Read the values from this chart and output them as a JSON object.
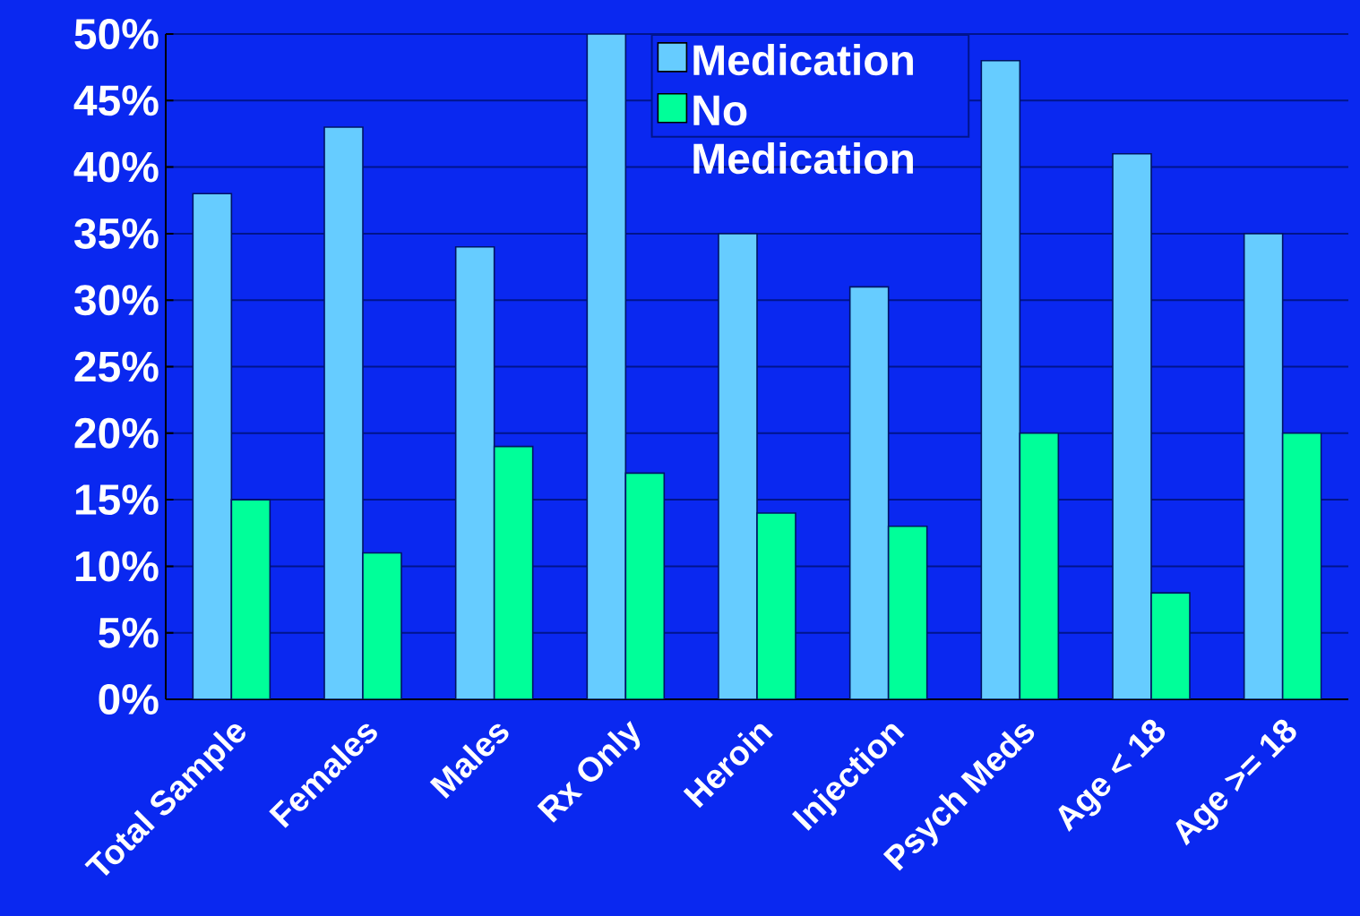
{
  "chart_data": {
    "type": "bar",
    "categories": [
      "Total Sample",
      "Females",
      "Males",
      "Rx Only",
      "Heroin",
      "Injection",
      "Psych Meds",
      "Age < 18",
      "Age >= 18"
    ],
    "series": [
      {
        "name": "Medication",
        "color": "#66ccff",
        "values": [
          38,
          43,
          34,
          50,
          35,
          31,
          48,
          41,
          35
        ]
      },
      {
        "name": "No Medication",
        "color": "#00ff99",
        "values": [
          15,
          11,
          19,
          17,
          14,
          13,
          20,
          8,
          20
        ]
      }
    ],
    "ylim": [
      0,
      50
    ],
    "yticks": [
      {
        "value": 0,
        "label": "0%"
      },
      {
        "value": 5,
        "label": "5%"
      },
      {
        "value": 10,
        "label": "10%"
      },
      {
        "value": 15,
        "label": "15%"
      },
      {
        "value": 20,
        "label": "20%"
      },
      {
        "value": 25,
        "label": "25%"
      },
      {
        "value": 30,
        "label": "30%"
      },
      {
        "value": 35,
        "label": "35%"
      },
      {
        "value": 40,
        "label": "40%"
      },
      {
        "value": 45,
        "label": "45%"
      },
      {
        "value": 50,
        "label": "50%"
      }
    ],
    "grid": "y",
    "legend": "top"
  }
}
